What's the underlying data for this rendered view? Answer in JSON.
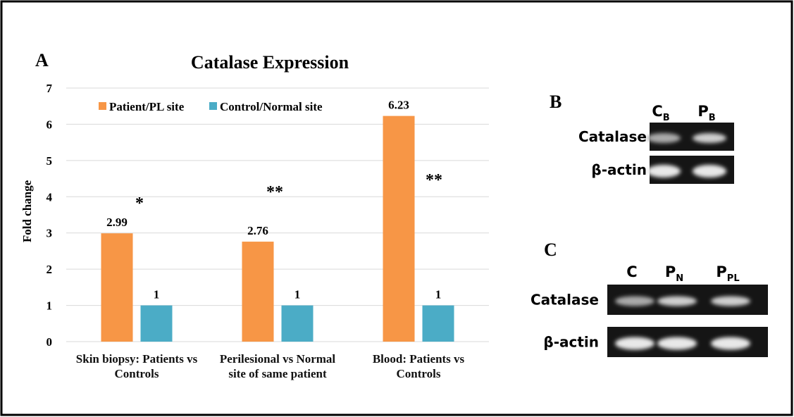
{
  "chart_data": {
    "type": "bar",
    "panel_label": "A",
    "title": "Catalase Expression",
    "y_label": "Fold change",
    "categories": [
      "Skin biopsy: Patients vs Controls",
      "Perilesional vs Normal site of same patient",
      "Blood: Patients vs Controls"
    ],
    "series": [
      {
        "name": "Patient/PL site",
        "color": "#f79646",
        "values": [
          2.99,
          2.76,
          6.23
        ]
      },
      {
        "name": "Control/Normal site",
        "color": "#4bacc6",
        "values": [
          1,
          1,
          1
        ]
      }
    ],
    "annotations": [
      "*",
      "**",
      "**"
    ],
    "ylim": [
      0,
      7
    ],
    "yticks": [
      0,
      1,
      2,
      3,
      4,
      5,
      6,
      7
    ],
    "grid": true,
    "legend": "top-left"
  },
  "panel_b": {
    "label": "B",
    "lanes": [
      {
        "letter": "C",
        "subscript": "B"
      },
      {
        "letter": "P",
        "subscript": "B"
      }
    ],
    "rows": [
      "Catalase",
      "β-actin"
    ]
  },
  "panel_c": {
    "label": "C",
    "lanes": [
      {
        "letter": "C"
      },
      {
        "letter": "P",
        "subscript": "N"
      },
      {
        "letter": "P",
        "subscript": "PL"
      }
    ],
    "rows": [
      "Catalase",
      "β-actin"
    ]
  }
}
